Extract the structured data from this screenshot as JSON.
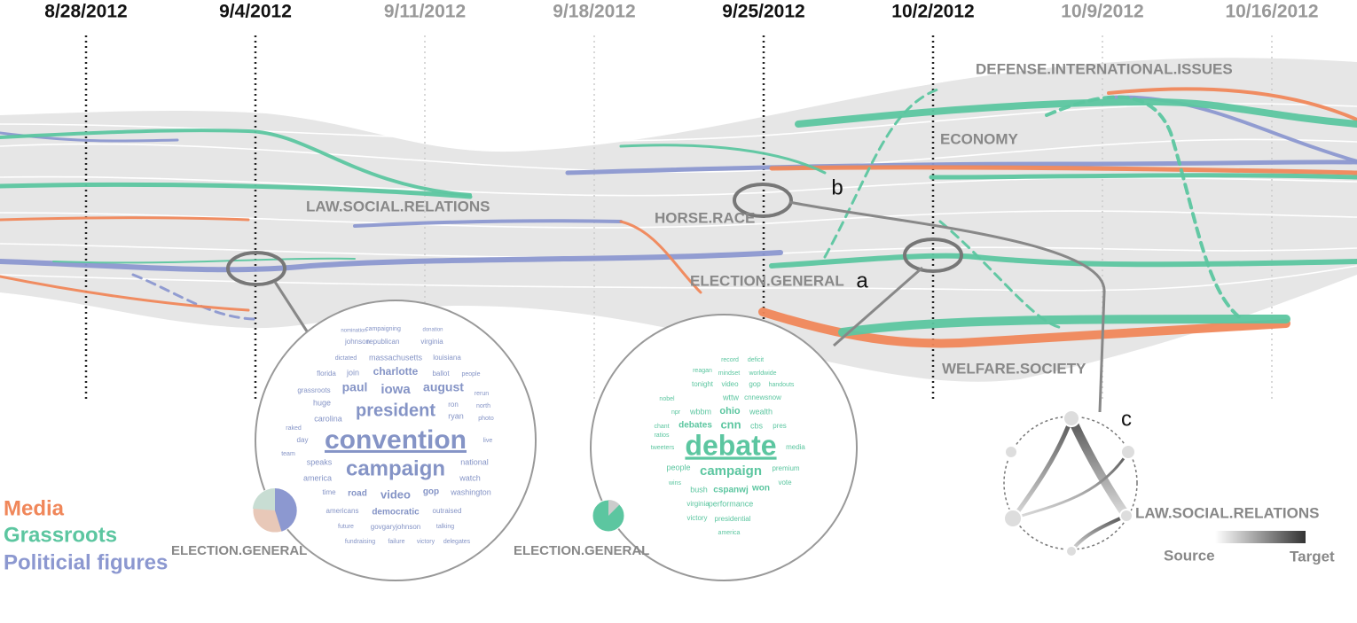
{
  "dates": [
    "8/28/2012",
    "9/4/2012",
    "9/11/2012",
    "9/18/2012",
    "9/25/2012",
    "10/2/2012",
    "10/9/2012",
    "10/16/2012"
  ],
  "topics": [
    "DEFENSE.INTERNATIONAL.ISSUES",
    "ECONOMY",
    "LAW.SOCIAL.RELATIONS",
    "HORSE.RACE",
    "ELECTION.GENERAL",
    "WELFARE.SOCIETY"
  ],
  "annotations": [
    "a",
    "b",
    "c"
  ],
  "legend": [
    "Media",
    "Grassroots",
    "Politicial figures"
  ],
  "clouds": [
    {
      "label": "ELECTION.GENERAL",
      "words": [
        "convention",
        "campaign",
        "president",
        "iowa",
        "paul",
        "august",
        "charlotte",
        "video",
        "democratic",
        "road",
        "time",
        "gop",
        "washington",
        "national",
        "watch",
        "speaks",
        "america",
        "americans",
        "outraised",
        "govgaryjohnson",
        "massachusetts",
        "republican",
        "virginia",
        "johnson",
        "carolina",
        "huge",
        "grassroots",
        "join",
        "florida",
        "ryan",
        "ron",
        "photo",
        "louisiana",
        "ballot",
        "people",
        "fundraising",
        "failure",
        "victory",
        "delegates",
        "day",
        "team",
        "talking",
        "future",
        "dictated",
        "campaigning",
        "donation",
        "nomination",
        "north",
        "rerun",
        "live",
        "raked"
      ]
    },
    {
      "label": "ELECTION.GENERAL",
      "words": [
        "debate",
        "campaign",
        "cnn",
        "debates",
        "ohio",
        "wealth",
        "wbbm",
        "cbs",
        "pres",
        "wttw",
        "cnnewsnow",
        "gop",
        "video",
        "tonight",
        "handouts",
        "people",
        "bush",
        "cspanwj",
        "won",
        "performance",
        "virginia",
        "victory",
        "presidential",
        "premium",
        "media",
        "vote",
        "wins",
        "ratios",
        "tweeters",
        "npr",
        "chant",
        "nobel",
        "record",
        "deficit",
        "reagan",
        "mindset",
        "worldwide",
        "america"
      ]
    }
  ],
  "glyph": {
    "label": "LAW.SOCIAL.RELATIONS",
    "source": "Source",
    "target": "Target"
  }
}
